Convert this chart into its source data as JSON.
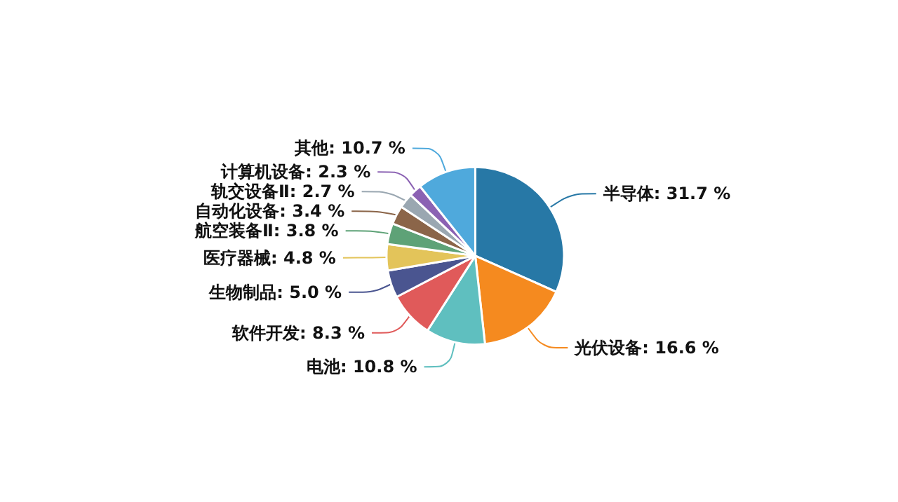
{
  "chart_data": {
    "type": "pie",
    "categories": [
      "半导体",
      "光伏设备",
      "电池",
      "软件开发",
      "生物制品",
      "医疗器械",
      "航空装备Ⅱ",
      "自动化设备",
      "轨交设备Ⅱ",
      "计算机设备",
      "其他"
    ],
    "values": [
      31.7,
      16.6,
      10.8,
      8.3,
      5.0,
      4.8,
      3.8,
      3.4,
      2.7,
      2.3,
      10.7
    ],
    "value_labels": [
      "31.7 %",
      "16.6 %",
      "10.8 %",
      "8.3 %",
      "5.0 %",
      "4.8 %",
      "3.8 %",
      "3.4 %",
      "2.7 %",
      "2.3 %",
      "10.7 %"
    ],
    "colors": [
      "#2778a6",
      "#f58a1f",
      "#5fbfbf",
      "#e05a5a",
      "#4a5590",
      "#e3c45a",
      "#5ea277",
      "#8b6549",
      "#9aa7b1",
      "#8b62b3",
      "#4fa9dc"
    ],
    "legend": false
  }
}
